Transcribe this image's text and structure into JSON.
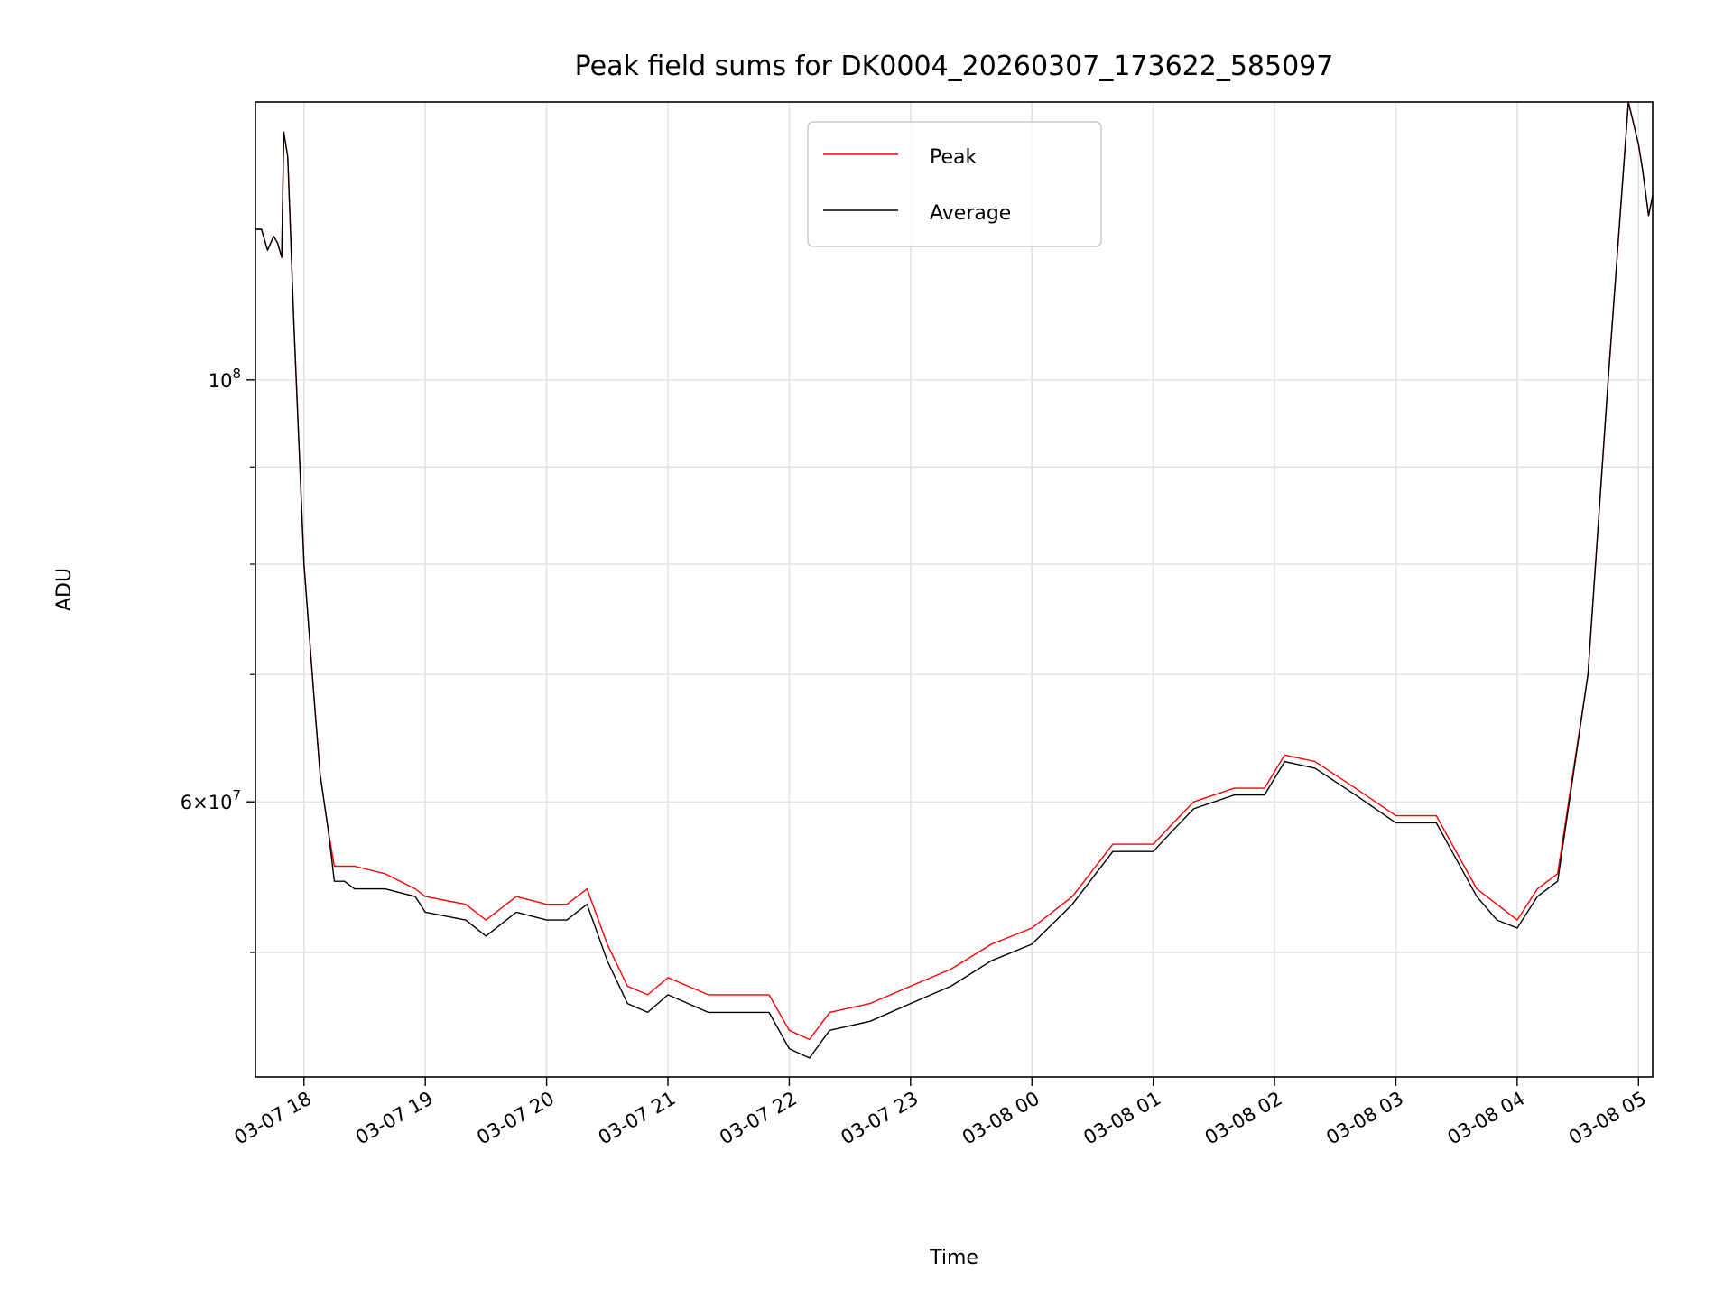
{
  "chart_data": {
    "type": "line",
    "title": "Peak field sums for DK0004_20260307_173622_585097",
    "xlabel": "Time",
    "ylabel": "ADU",
    "y_scale": "log",
    "xlim": [
      "03-07 17:36",
      "03-08 05:07"
    ],
    "ylim": [
      43000000,
      140000000
    ],
    "grid": true,
    "legend_placement": "upper center",
    "x_ticks": [
      "03-07 18",
      "03-07 19",
      "03-07 20",
      "03-07 21",
      "03-07 22",
      "03-07 23",
      "03-08 00",
      "03-08 01",
      "03-08 02",
      "03-08 03",
      "03-08 04",
      "03-08 05"
    ],
    "y_ticks": [
      {
        "value": 100000000,
        "base": "10",
        "exp": "8"
      },
      {
        "value": 60000000,
        "base": "6×10",
        "exp": "7"
      }
    ],
    "y_minor_ticks": [
      50000000,
      70000000,
      80000000,
      90000000
    ],
    "colors": {
      "Peak": "#ff0000",
      "Average": "#000000"
    },
    "series": [
      {
        "name": "Peak",
        "x": [
          "03-07 17:36",
          "03-07 17:39",
          "03-07 17:42",
          "03-07 17:45",
          "03-07 17:47",
          "03-07 17:49",
          "03-07 17:50",
          "03-07 17:52",
          "03-07 17:55",
          "03-07 18:00",
          "03-07 18:05",
          "03-07 18:08",
          "03-07 18:12",
          "03-07 18:15",
          "03-07 18:20",
          "03-07 18:25",
          "03-07 18:40",
          "03-07 18:55",
          "03-07 19:00",
          "03-07 19:20",
          "03-07 19:30",
          "03-07 19:45",
          "03-07 20:00",
          "03-07 20:10",
          "03-07 20:20",
          "03-07 20:30",
          "03-07 20:40",
          "03-07 20:50",
          "03-07 21:00",
          "03-07 21:20",
          "03-07 21:40",
          "03-07 21:50",
          "03-07 22:00",
          "03-07 22:10",
          "03-07 22:20",
          "03-07 22:40",
          "03-07 23:00",
          "03-07 23:20",
          "03-07 23:40",
          "03-08 00:00",
          "03-08 00:20",
          "03-08 00:40",
          "03-08 01:00",
          "03-08 01:10",
          "03-08 01:20",
          "03-08 01:40",
          "03-08 01:55",
          "03-08 02:05",
          "03-08 02:20",
          "03-08 02:40",
          "03-08 03:00",
          "03-08 03:20",
          "03-08 03:40",
          "03-08 03:50",
          "03-08 04:00",
          "03-08 04:10",
          "03-08 04:20",
          "03-08 04:35",
          "03-08 04:45",
          "03-08 04:55",
          "03-08 05:00",
          "03-08 05:02",
          "03-08 05:05",
          "03-08 05:07"
        ],
        "values": [
          120000000,
          120000000,
          117000000,
          119000000,
          118000000,
          116000000,
          135000000,
          131000000,
          107000000,
          80000000,
          68000000,
          62000000,
          58000000,
          55500000,
          55500000,
          55500000,
          55000000,
          54000000,
          53500000,
          53000000,
          52000000,
          53500000,
          53000000,
          53000000,
          54000000,
          50500000,
          48000000,
          47500000,
          48500000,
          47500000,
          47500000,
          47500000,
          45500000,
          45000000,
          46500000,
          47000000,
          48000000,
          49000000,
          50500000,
          51500000,
          53500000,
          57000000,
          57000000,
          58500000,
          60000000,
          61000000,
          61000000,
          63500000,
          63000000,
          61000000,
          59000000,
          59000000,
          54000000,
          53000000,
          52000000,
          54000000,
          55000000,
          70000000,
          100000000,
          140000000,
          133000000,
          129000000,
          122000000,
          125000000
        ]
      },
      {
        "name": "Average",
        "x": [
          "03-07 17:36",
          "03-07 17:39",
          "03-07 17:42",
          "03-07 17:45",
          "03-07 17:47",
          "03-07 17:49",
          "03-07 17:50",
          "03-07 17:52",
          "03-07 17:55",
          "03-07 18:00",
          "03-07 18:05",
          "03-07 18:08",
          "03-07 18:12",
          "03-07 18:15",
          "03-07 18:20",
          "03-07 18:25",
          "03-07 18:40",
          "03-07 18:55",
          "03-07 19:00",
          "03-07 19:20",
          "03-07 19:30",
          "03-07 19:45",
          "03-07 20:00",
          "03-07 20:10",
          "03-07 20:20",
          "03-07 20:30",
          "03-07 20:40",
          "03-07 20:50",
          "03-07 21:00",
          "03-07 21:20",
          "03-07 21:40",
          "03-07 21:50",
          "03-07 22:00",
          "03-07 22:10",
          "03-07 22:20",
          "03-07 22:40",
          "03-07 23:00",
          "03-07 23:20",
          "03-07 23:40",
          "03-08 00:00",
          "03-08 00:20",
          "03-08 00:40",
          "03-08 01:00",
          "03-08 01:10",
          "03-08 01:20",
          "03-08 01:40",
          "03-08 01:55",
          "03-08 02:05",
          "03-08 02:20",
          "03-08 02:40",
          "03-08 03:00",
          "03-08 03:20",
          "03-08 03:40",
          "03-08 03:50",
          "03-08 04:00",
          "03-08 04:10",
          "03-08 04:20",
          "03-08 04:35",
          "03-08 04:45",
          "03-08 04:55",
          "03-08 05:00",
          "03-08 05:02",
          "03-08 05:05",
          "03-08 05:07"
        ],
        "values": [
          120000000,
          120000000,
          117000000,
          119000000,
          118000000,
          116000000,
          135000000,
          131000000,
          107000000,
          80000000,
          68000000,
          62000000,
          58000000,
          54500000,
          54500000,
          54000000,
          54000000,
          53500000,
          52500000,
          52000000,
          51000000,
          52500000,
          52000000,
          52000000,
          53000000,
          49500000,
          47000000,
          46500000,
          47500000,
          46500000,
          46500000,
          46500000,
          44500000,
          44000000,
          45500000,
          46000000,
          47000000,
          48000000,
          49500000,
          50500000,
          53000000,
          56500000,
          56500000,
          58000000,
          59500000,
          60500000,
          60500000,
          63000000,
          62500000,
          60500000,
          58500000,
          58500000,
          53500000,
          52000000,
          51500000,
          53500000,
          54500000,
          70000000,
          100000000,
          140000000,
          133000000,
          129000000,
          122000000,
          125000000
        ]
      }
    ]
  }
}
